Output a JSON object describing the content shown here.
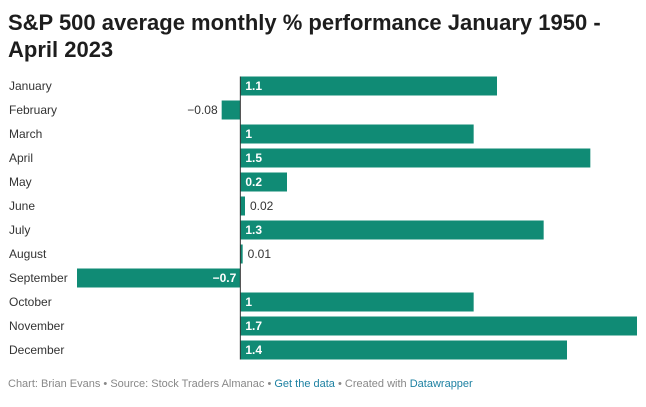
{
  "title": "S&P 500 average monthly % performance January 1950 - April 2023",
  "chart_data": {
    "type": "bar",
    "orientation": "horizontal",
    "categories": [
      "January",
      "February",
      "March",
      "April",
      "May",
      "June",
      "July",
      "August",
      "September",
      "October",
      "November",
      "December"
    ],
    "values": [
      1.1,
      -0.08,
      1,
      1.5,
      0.2,
      0.02,
      1.3,
      0.01,
      -0.7,
      1,
      1.7,
      1.4
    ],
    "value_labels": [
      "1.1",
      "−0.08",
      "1",
      "1.5",
      "0.2",
      "0.02",
      "1.3",
      "0.01",
      "−0.7",
      "1",
      "1.7",
      "1.4"
    ],
    "xlim": [
      -0.7,
      1.7
    ],
    "bar_color": "#108b75",
    "grid": false
  },
  "footer": {
    "credit": "Chart: Brian Evans",
    "source": "Source: Stock Traders Almanac",
    "get_data": "Get the data",
    "created_with": "Created with",
    "tool": "Datawrapper",
    "separator": "•"
  },
  "colors": {
    "bar": "#108b75",
    "axis_line": "#333333",
    "link": "#1d81a2",
    "footer_text": "#888888"
  }
}
